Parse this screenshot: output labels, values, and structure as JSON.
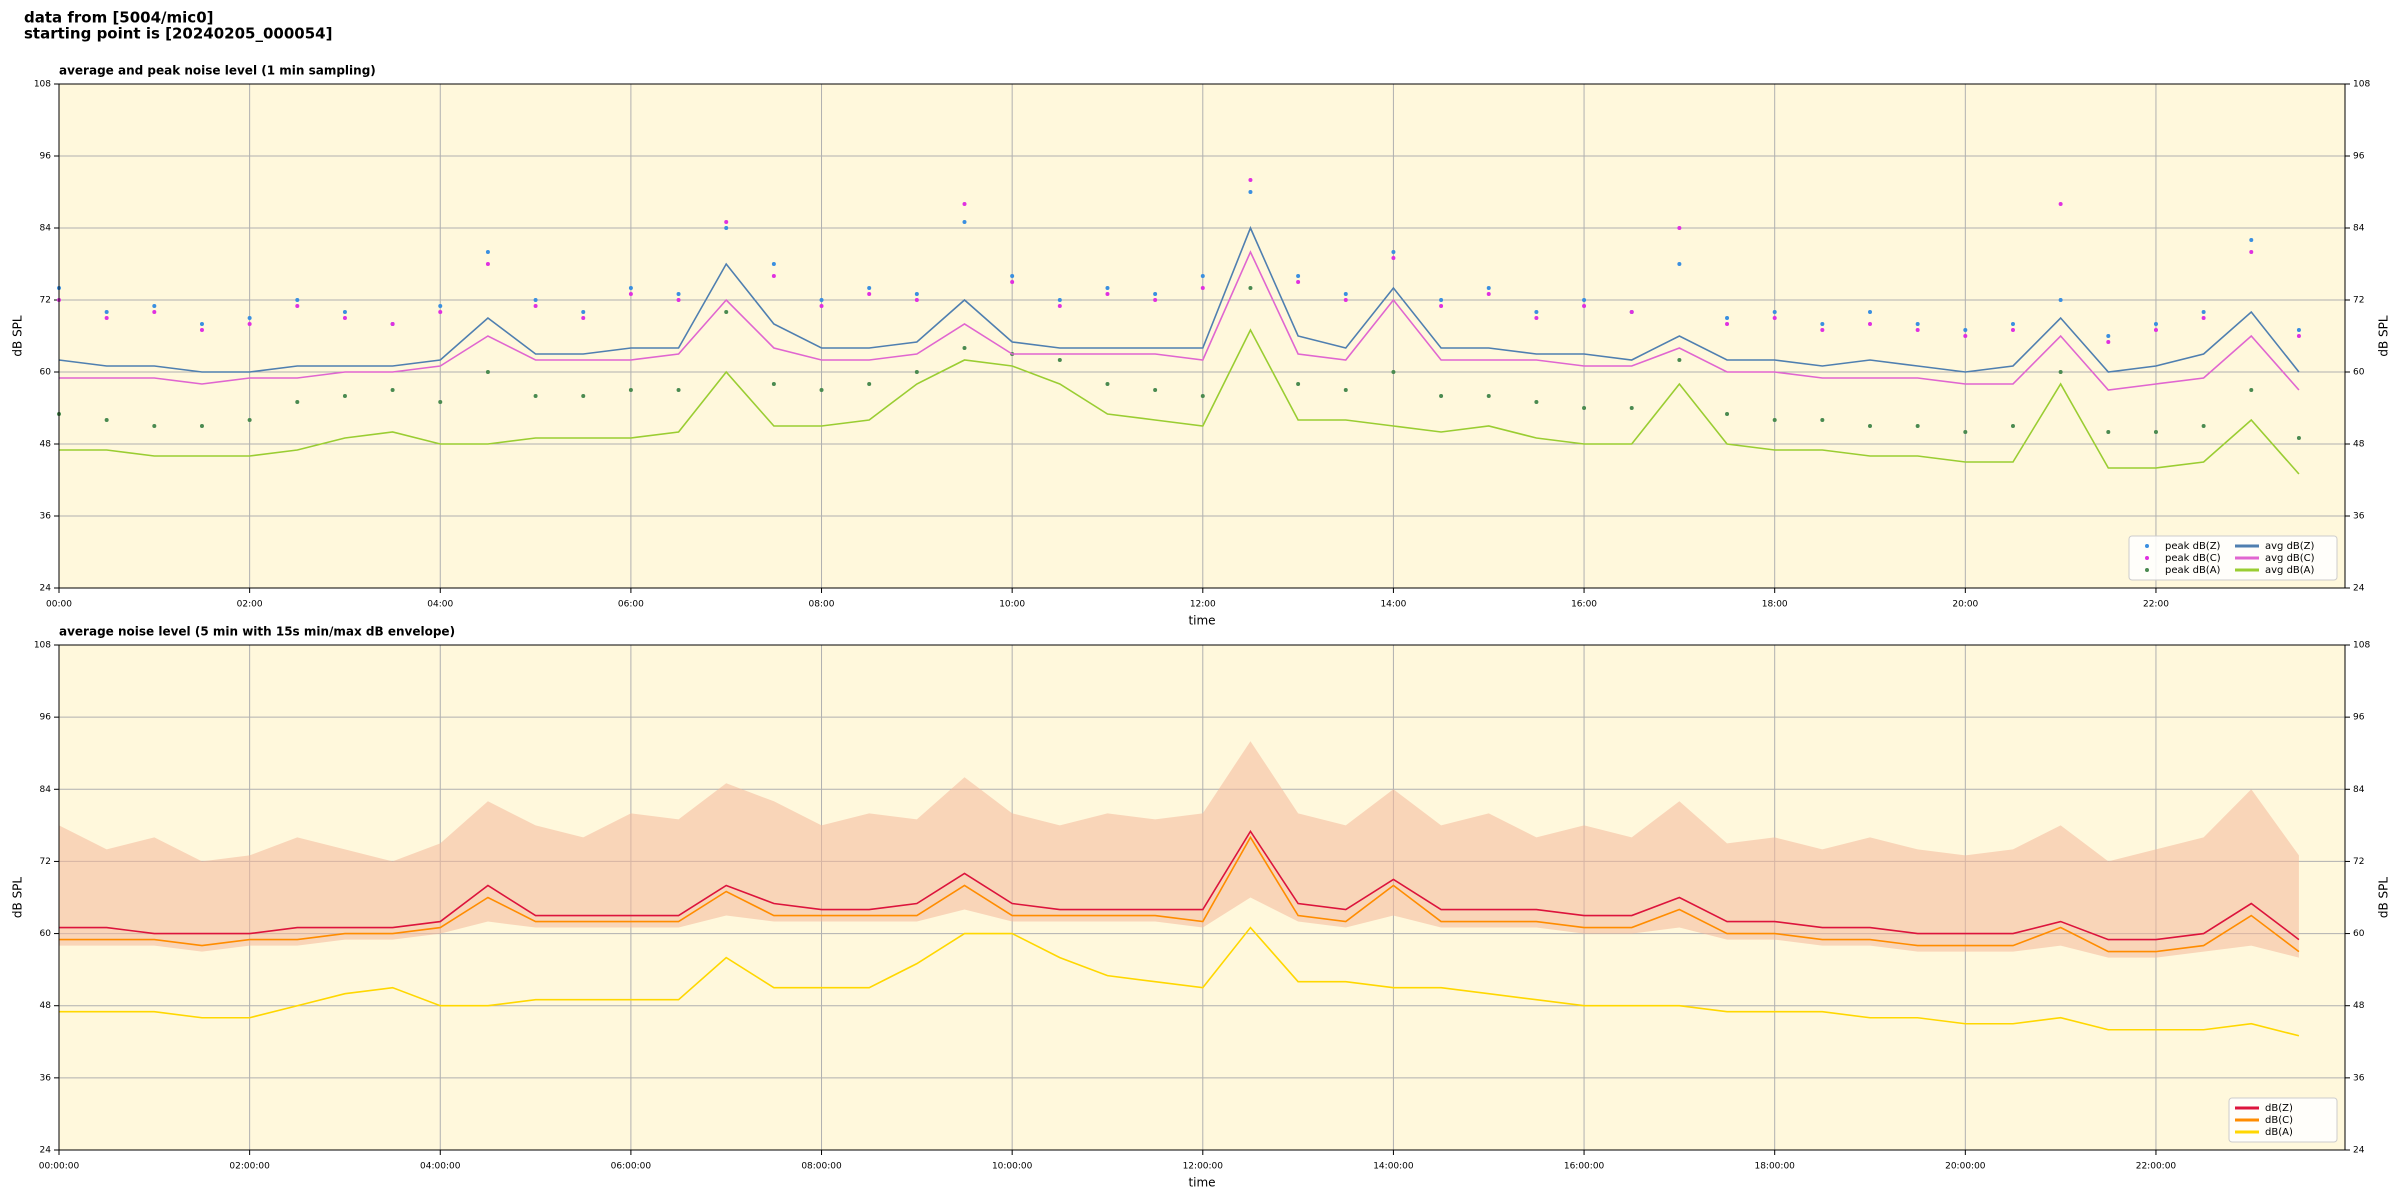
{
  "header": {
    "lines": [
      "data from [5004/mic0]",
      "starting point is [20240205_000054]"
    ]
  },
  "chart_data": [
    {
      "type": "line",
      "title": "average and peak noise level (1 min sampling)",
      "xlabel": "time",
      "ylabel": "dB SPL",
      "x": [
        "00:00",
        "00:30",
        "01:00",
        "01:30",
        "02:00",
        "02:30",
        "03:00",
        "03:30",
        "04:00",
        "04:30",
        "05:00",
        "05:30",
        "06:00",
        "06:30",
        "07:00",
        "07:30",
        "08:00",
        "08:30",
        "09:00",
        "09:30",
        "10:00",
        "10:30",
        "11:00",
        "11:30",
        "12:00",
        "12:30",
        "13:00",
        "13:30",
        "14:00",
        "14:30",
        "15:00",
        "15:30",
        "16:00",
        "16:30",
        "17:00",
        "17:30",
        "18:00",
        "18:30",
        "19:00",
        "19:30",
        "20:00",
        "20:30",
        "21:00",
        "21:30",
        "22:00",
        "22:30",
        "23:00",
        "23:30"
      ],
      "xlim": [
        "00:00",
        "23:59"
      ],
      "xticks": [
        "00:00",
        "02:00",
        "04:00",
        "06:00",
        "08:00",
        "10:00",
        "12:00",
        "14:00",
        "16:00",
        "18:00",
        "20:00",
        "22:00"
      ],
      "ylim": [
        24,
        108
      ],
      "yticks": [
        24,
        36,
        48,
        60,
        72,
        84,
        96,
        108
      ],
      "grid": true,
      "background": "#fff8dc",
      "legend": "lower right",
      "series": [
        {
          "name": "peak dB(Z)",
          "style": "scatter",
          "color": "#3a8fe0",
          "values": [
            74,
            70,
            71,
            68,
            69,
            72,
            70,
            68,
            71,
            80,
            72,
            70,
            74,
            73,
            84,
            78,
            72,
            74,
            73,
            85,
            76,
            72,
            74,
            73,
            76,
            90,
            76,
            73,
            80,
            72,
            74,
            70,
            72,
            70,
            78,
            69,
            70,
            68,
            70,
            68,
            67,
            68,
            72,
            66,
            68,
            70,
            82,
            67
          ]
        },
        {
          "name": "peak dB(C)",
          "style": "scatter",
          "color": "#e030e0",
          "values": [
            72,
            69,
            70,
            67,
            68,
            71,
            69,
            68,
            70,
            78,
            71,
            69,
            73,
            72,
            85,
            76,
            71,
            73,
            72,
            88,
            75,
            71,
            73,
            72,
            74,
            92,
            75,
            72,
            79,
            71,
            73,
            69,
            71,
            70,
            84,
            68,
            69,
            67,
            68,
            67,
            66,
            67,
            88,
            65,
            67,
            69,
            80,
            66
          ]
        },
        {
          "name": "peak dB(A)",
          "style": "scatter",
          "color": "#4a8a50",
          "values": [
            53,
            52,
            51,
            51,
            52,
            55,
            56,
            57,
            55,
            60,
            56,
            56,
            57,
            57,
            70,
            58,
            57,
            58,
            60,
            64,
            63,
            62,
            58,
            57,
            56,
            74,
            58,
            57,
            60,
            56,
            56,
            55,
            54,
            54,
            62,
            53,
            52,
            52,
            51,
            51,
            50,
            51,
            60,
            50,
            50,
            51,
            57,
            49
          ]
        },
        {
          "name": "avg dB(Z)",
          "style": "line",
          "color": "#4f7fb0",
          "values": [
            62,
            61,
            61,
            60,
            60,
            61,
            61,
            61,
            62,
            69,
            63,
            63,
            64,
            64,
            78,
            68,
            64,
            64,
            65,
            72,
            65,
            64,
            64,
            64,
            64,
            84,
            66,
            64,
            74,
            64,
            64,
            63,
            63,
            62,
            66,
            62,
            62,
            61,
            62,
            61,
            60,
            61,
            69,
            60,
            61,
            63,
            70,
            60
          ]
        },
        {
          "name": "avg dB(C)",
          "style": "line",
          "color": "#e066d0",
          "values": [
            59,
            59,
            59,
            58,
            59,
            59,
            60,
            60,
            61,
            66,
            62,
            62,
            62,
            63,
            72,
            64,
            62,
            62,
            63,
            68,
            63,
            63,
            63,
            63,
            62,
            80,
            63,
            62,
            72,
            62,
            62,
            62,
            61,
            61,
            64,
            60,
            60,
            59,
            59,
            59,
            58,
            58,
            66,
            57,
            58,
            59,
            66,
            57
          ]
        },
        {
          "name": "avg dB(A)",
          "style": "line",
          "color": "#9acd32",
          "values": [
            47,
            47,
            46,
            46,
            46,
            47,
            49,
            50,
            48,
            48,
            49,
            49,
            49,
            50,
            60,
            51,
            51,
            52,
            58,
            62,
            61,
            58,
            53,
            52,
            51,
            67,
            52,
            52,
            51,
            50,
            51,
            49,
            48,
            48,
            58,
            48,
            47,
            47,
            46,
            46,
            45,
            45,
            58,
            44,
            44,
            45,
            52,
            43
          ]
        }
      ]
    },
    {
      "type": "line",
      "title": "average noise level (5 min with 15s min/max dB envelope)",
      "xlabel": "time",
      "ylabel": "dB SPL",
      "x": [
        "00:00:00",
        "00:30:00",
        "01:00:00",
        "01:30:00",
        "02:00:00",
        "02:30:00",
        "03:00:00",
        "03:30:00",
        "04:00:00",
        "04:30:00",
        "05:00:00",
        "05:30:00",
        "06:00:00",
        "06:30:00",
        "07:00:00",
        "07:30:00",
        "08:00:00",
        "08:30:00",
        "09:00:00",
        "09:30:00",
        "10:00:00",
        "10:30:00",
        "11:00:00",
        "11:30:00",
        "12:00:00",
        "12:30:00",
        "13:00:00",
        "13:30:00",
        "14:00:00",
        "14:30:00",
        "15:00:00",
        "15:30:00",
        "16:00:00",
        "16:30:00",
        "17:00:00",
        "17:30:00",
        "18:00:00",
        "18:30:00",
        "19:00:00",
        "19:30:00",
        "20:00:00",
        "20:30:00",
        "21:00:00",
        "21:30:00",
        "22:00:00",
        "22:30:00",
        "23:00:00",
        "23:30:00"
      ],
      "xlim": [
        "00:00:00",
        "23:59:00"
      ],
      "xticks": [
        "00:00:00",
        "02:00:00",
        "04:00:00",
        "06:00:00",
        "08:00:00",
        "10:00:00",
        "12:00:00",
        "14:00:00",
        "16:00:00",
        "18:00:00",
        "20:00:00",
        "22:00:00"
      ],
      "ylim": [
        24,
        108
      ],
      "yticks": [
        24,
        36,
        48,
        60,
        72,
        84,
        96,
        108
      ],
      "grid": true,
      "background": "#fff8dc",
      "legend": "lower right",
      "envelope": {
        "color": "#f4b89a",
        "low": [
          58,
          58,
          58,
          57,
          58,
          58,
          59,
          59,
          60,
          62,
          61,
          61,
          61,
          61,
          63,
          62,
          62,
          62,
          62,
          64,
          62,
          62,
          62,
          62,
          61,
          66,
          62,
          61,
          63,
          61,
          61,
          61,
          60,
          60,
          61,
          59,
          59,
          58,
          58,
          57,
          57,
          57,
          58,
          56,
          56,
          57,
          58,
          56
        ],
        "high": [
          78,
          74,
          76,
          72,
          73,
          76,
          74,
          72,
          75,
          82,
          78,
          76,
          80,
          79,
          85,
          82,
          78,
          80,
          79,
          86,
          80,
          78,
          80,
          79,
          80,
          92,
          80,
          78,
          84,
          78,
          80,
          76,
          78,
          76,
          82,
          75,
          76,
          74,
          76,
          74,
          73,
          74,
          78,
          72,
          74,
          76,
          84,
          73
        ]
      },
      "series": [
        {
          "name": "dB(Z)",
          "style": "line",
          "color": "#dc143c",
          "values": [
            61,
            61,
            60,
            60,
            60,
            61,
            61,
            61,
            62,
            68,
            63,
            63,
            63,
            63,
            68,
            65,
            64,
            64,
            65,
            70,
            65,
            64,
            64,
            64,
            64,
            77,
            65,
            64,
            69,
            64,
            64,
            64,
            63,
            63,
            66,
            62,
            62,
            61,
            61,
            60,
            60,
            60,
            62,
            59,
            59,
            60,
            65,
            59
          ]
        },
        {
          "name": "dB(C)",
          "style": "line",
          "color": "#ff8c00",
          "values": [
            59,
            59,
            59,
            58,
            59,
            59,
            60,
            60,
            61,
            66,
            62,
            62,
            62,
            62,
            67,
            63,
            63,
            63,
            63,
            68,
            63,
            63,
            63,
            63,
            62,
            76,
            63,
            62,
            68,
            62,
            62,
            62,
            61,
            61,
            64,
            60,
            60,
            59,
            59,
            58,
            58,
            58,
            61,
            57,
            57,
            58,
            63,
            57
          ]
        },
        {
          "name": "dB(A)",
          "style": "line",
          "color": "#ffd700",
          "values": [
            47,
            47,
            47,
            46,
            46,
            48,
            50,
            51,
            48,
            48,
            49,
            49,
            49,
            49,
            56,
            51,
            51,
            51,
            55,
            60,
            60,
            56,
            53,
            52,
            51,
            61,
            52,
            52,
            51,
            51,
            50,
            49,
            48,
            48,
            48,
            47,
            47,
            47,
            46,
            46,
            45,
            45,
            46,
            44,
            44,
            44,
            45,
            43
          ]
        }
      ]
    }
  ]
}
